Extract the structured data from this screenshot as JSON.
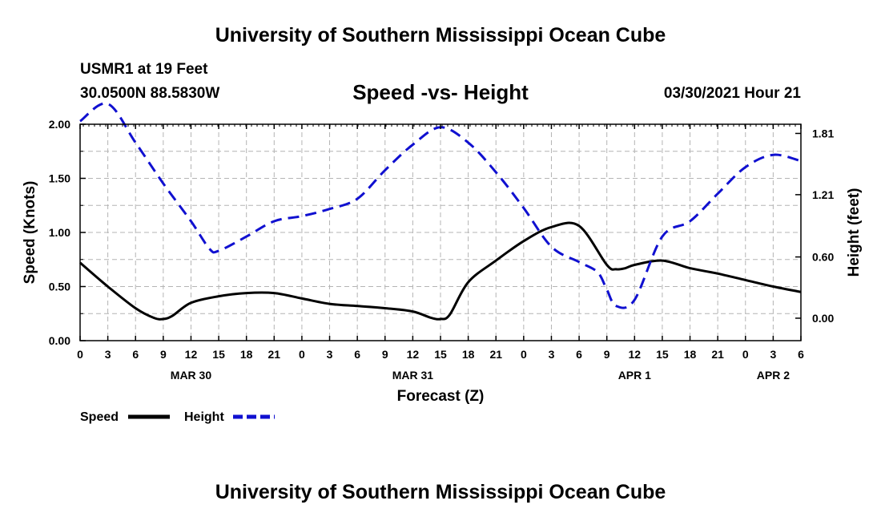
{
  "header": {
    "title": "University of Southern Mississippi Ocean Cube",
    "station": "USMR1 at 19 Feet",
    "coords": "30.0500N  88.5830W",
    "subtitle": "Speed -vs- Height",
    "timestamp": "03/30/2021 Hour 21"
  },
  "footer": {
    "title": "University of Southern Mississippi Ocean Cube"
  },
  "colors": {
    "speed": "#000000",
    "height": "#1010d0",
    "grid": "#b4b4b4",
    "axis": "#000000"
  },
  "chart_data": {
    "type": "line",
    "xlabel": "Forecast (Z)",
    "ylabel": "Speed (Knots)",
    "y2label": "Height (feet)",
    "xlim": [
      0,
      78
    ],
    "ylim": [
      0,
      2.0
    ],
    "y2lim": [
      -0.22,
      1.9
    ],
    "grid": true,
    "x_ticks": [
      0,
      3,
      6,
      9,
      12,
      15,
      18,
      21,
      24,
      27,
      30,
      33,
      36,
      39,
      42,
      45,
      48,
      51,
      54,
      57,
      60,
      63,
      66,
      69,
      72,
      75,
      78
    ],
    "x_tick_labels": [
      "0",
      "3",
      "6",
      "9",
      "12",
      "15",
      "18",
      "21",
      "0",
      "3",
      "6",
      "9",
      "12",
      "15",
      "18",
      "21",
      "0",
      "3",
      "6",
      "9",
      "12",
      "15",
      "18",
      "21",
      "0",
      "3",
      "6"
    ],
    "date_labels": [
      {
        "x": 12,
        "label": "MAR 30"
      },
      {
        "x": 36,
        "label": "MAR 31"
      },
      {
        "x": 60,
        "label": "APR 1"
      },
      {
        "x": 75,
        "label": "APR 2"
      }
    ],
    "y_ticks": [
      0,
      0.5,
      1.0,
      1.5,
      2.0
    ],
    "y_tick_labels": [
      "0.00",
      "0.50",
      "1.00",
      "1.50",
      "2.00"
    ],
    "y2_ticks": [
      0.0,
      0.6,
      1.21,
      1.81
    ],
    "y2_tick_labels": [
      "0.00",
      "0.60",
      "1.21",
      "1.81"
    ],
    "series": [
      {
        "name": "Speed",
        "axis": "left",
        "style": "solid",
        "x": [
          0,
          3,
          6,
          8,
          9,
          10,
          12,
          15,
          18,
          21,
          24,
          27,
          30,
          33,
          36,
          38,
          39,
          40,
          42,
          45,
          48,
          51,
          54,
          57,
          58,
          59,
          60,
          63,
          66,
          69,
          72,
          75,
          78
        ],
        "values": [
          0.72,
          0.5,
          0.3,
          0.21,
          0.2,
          0.23,
          0.35,
          0.41,
          0.44,
          0.44,
          0.39,
          0.34,
          0.32,
          0.3,
          0.27,
          0.21,
          0.2,
          0.24,
          0.54,
          0.74,
          0.92,
          1.05,
          1.06,
          0.7,
          0.66,
          0.67,
          0.7,
          0.74,
          0.67,
          0.62,
          0.56,
          0.5,
          0.45
        ]
      },
      {
        "name": "Height",
        "axis": "right",
        "style": "dashed",
        "x": [
          0,
          3,
          6,
          9,
          12,
          14,
          15,
          18,
          21,
          24,
          27,
          30,
          33,
          36,
          39,
          42,
          45,
          48,
          51,
          54,
          56,
          57,
          58,
          60,
          63,
          66,
          69,
          72,
          75,
          78
        ],
        "values": [
          1.93,
          2.1,
          1.72,
          1.32,
          0.95,
          0.68,
          0.66,
          0.8,
          0.95,
          1.0,
          1.07,
          1.17,
          1.45,
          1.7,
          1.87,
          1.72,
          1.43,
          1.08,
          0.7,
          0.55,
          0.45,
          0.28,
          0.12,
          0.18,
          0.8,
          0.95,
          1.22,
          1.48,
          1.6,
          1.54
        ]
      }
    ],
    "legend": [
      {
        "label": "Speed",
        "color": "#000000",
        "style": "solid"
      },
      {
        "label": "Height",
        "color": "#1010d0",
        "style": "dashed"
      }
    ]
  }
}
